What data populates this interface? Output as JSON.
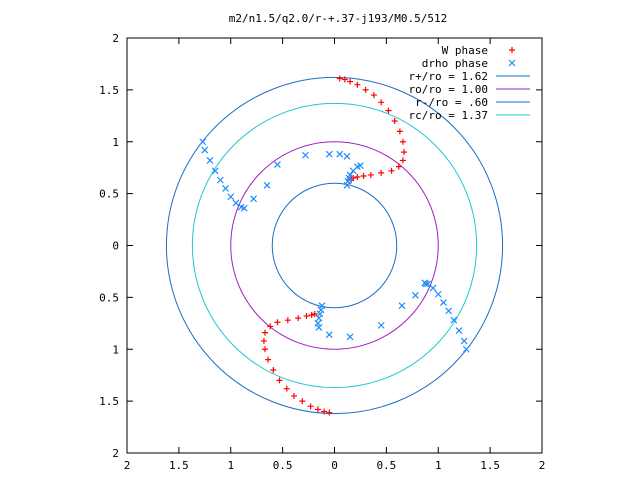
{
  "chart_data": {
    "type": "scatter",
    "title": "m2/n1.5/q2.0/r-+.37-j193/M0.5/512",
    "xlabel": "",
    "ylabel": "",
    "xlim": [
      -2,
      2
    ],
    "ylim": [
      -2,
      2
    ],
    "x_tick_labels": [
      "2",
      "1.5",
      "1",
      "0.5",
      "0",
      "0.5",
      "1",
      "1.5",
      "2"
    ],
    "y_tick_labels": [
      "2",
      "1.5",
      "1",
      "0.5",
      "0",
      "0.5",
      "1",
      "1.5",
      "2"
    ],
    "grid": false,
    "legend_position": "top-right",
    "circles": [
      {
        "name": "r+/ro = 1.62",
        "radius": 1.62,
        "color": "#1a6fc4"
      },
      {
        "name": "ro/ro = 1.00",
        "radius": 1.0,
        "color": "#a020c0"
      },
      {
        "name": "r-/ro = .60",
        "radius": 0.6,
        "color": "#1a6fc4"
      },
      {
        "name": "rc/ro = 1.37",
        "radius": 1.37,
        "color": "#20c8d0"
      }
    ],
    "series": [
      {
        "name": "W phase",
        "marker": "plus",
        "color": "#ff0000",
        "x": [
          0.05,
          0.1,
          0.15,
          0.22,
          0.3,
          0.38,
          0.45,
          0.52,
          0.58,
          0.63,
          0.66,
          0.67,
          0.66,
          0.62,
          0.55,
          0.45,
          0.35,
          0.28,
          0.22,
          0.18,
          0.16,
          -0.05,
          -0.1,
          -0.16,
          -0.23,
          -0.31,
          -0.39,
          -0.46,
          -0.53,
          -0.59,
          -0.64,
          -0.67,
          -0.68,
          -0.67,
          -0.62,
          -0.55,
          -0.45,
          -0.35,
          -0.27,
          -0.22,
          -0.19
        ],
        "y": [
          1.61,
          1.6,
          1.58,
          1.55,
          1.5,
          1.45,
          1.38,
          1.3,
          1.2,
          1.1,
          1.0,
          0.9,
          0.82,
          0.76,
          0.72,
          0.7,
          0.68,
          0.67,
          0.66,
          0.65,
          0.63,
          -1.61,
          -1.6,
          -1.58,
          -1.55,
          -1.5,
          -1.45,
          -1.38,
          -1.3,
          -1.2,
          -1.1,
          -1.0,
          -0.92,
          -0.84,
          -0.78,
          -0.74,
          -0.72,
          -0.7,
          -0.68,
          -0.67,
          -0.66
        ]
      },
      {
        "name": "drho phase",
        "marker": "cross",
        "color": "#1a8cff",
        "x": [
          -1.27,
          -1.25,
          -1.2,
          -1.15,
          -1.1,
          -1.05,
          -1.0,
          -0.95,
          -0.9,
          -0.87,
          0.12,
          0.13,
          0.14,
          0.15,
          0.18,
          0.22,
          0.25,
          1.27,
          1.25,
          1.2,
          1.15,
          1.1,
          1.05,
          1.0,
          0.95,
          0.9,
          0.87,
          -0.12,
          -0.13,
          -0.14,
          -0.15,
          -0.16,
          -0.15,
          0.88,
          0.78,
          0.65,
          0.45,
          0.15,
          -0.05,
          -0.78,
          -0.65,
          -0.55,
          -0.28,
          -0.05,
          0.05,
          0.12
        ],
        "y": [
          1.0,
          0.92,
          0.82,
          0.72,
          0.63,
          0.55,
          0.47,
          0.41,
          0.37,
          0.36,
          0.58,
          0.62,
          0.65,
          0.68,
          0.72,
          0.76,
          0.77,
          -1.0,
          -0.92,
          -0.82,
          -0.72,
          -0.63,
          -0.55,
          -0.47,
          -0.41,
          -0.37,
          -0.36,
          -0.58,
          -0.62,
          -0.66,
          -0.7,
          -0.75,
          -0.79,
          -0.37,
          -0.48,
          -0.58,
          -0.77,
          -0.88,
          -0.86,
          0.45,
          0.58,
          0.78,
          0.87,
          0.88,
          0.88,
          0.86
        ]
      }
    ]
  }
}
